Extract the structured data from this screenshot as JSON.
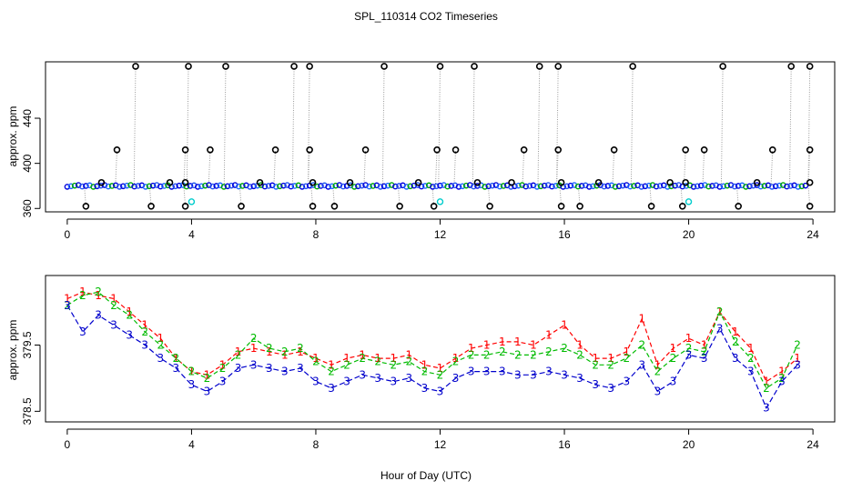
{
  "chart_data": [
    {
      "type": "scatter",
      "title": "SPL_110314  CO2 Timeseries",
      "xlabel": "",
      "ylabel": "approx. ppm",
      "xlim": [
        -0.7,
        24.7
      ],
      "ylim": [
        357,
        490
      ],
      "x_ticks": [
        "0",
        "4",
        "8",
        "12",
        "16",
        "20",
        "24"
      ],
      "y_ticks": [
        "360",
        "400",
        "440"
      ],
      "baseline": 380,
      "spike_top": 486,
      "spike_times": [
        2.2,
        3.9,
        5.1,
        7.3,
        7.8,
        10.2,
        12.0,
        13.1,
        15.2,
        15.8,
        18.2,
        21.1,
        23.3,
        23.9
      ],
      "mid_times": [
        1.6,
        3.8,
        4.6,
        6.7,
        7.8,
        9.6,
        11.9,
        12.5,
        14.7,
        15.8,
        17.6,
        19.9,
        20.5,
        22.7,
        23.9
      ],
      "mid_value": 412,
      "dip_times": [
        0.6,
        2.7,
        3.8,
        5.6,
        7.9,
        8.6,
        10.7,
        11.8,
        13.6,
        15.9,
        16.5,
        18.8,
        19.8,
        21.6,
        23.9
      ],
      "dip_value": 362,
      "bump_times": [
        1.1,
        3.3,
        3.8,
        6.2,
        7.9,
        9.1,
        11.3,
        13.2,
        14.3,
        15.9,
        17.1,
        19.4,
        19.9,
        22.2,
        23.9
      ],
      "bump_value": 383,
      "cyan_times": [
        4.0,
        12.0,
        20.0
      ],
      "cyan_value": 366
    },
    {
      "type": "line",
      "title": "",
      "xlabel": "Hour of Day (UTC)",
      "ylabel": "approx. ppm",
      "xlim": [
        -0.7,
        24.7
      ],
      "ylim": [
        378.34,
        380.55
      ],
      "x_ticks": [
        "0",
        "4",
        "8",
        "12",
        "16",
        "20",
        "24"
      ],
      "y_ticks": [
        "378.5",
        "379.5"
      ],
      "series": [
        {
          "name": "1",
          "label": "1",
          "color": "#ff0000",
          "x": [
            0,
            0.5,
            1,
            1.5,
            2,
            2.5,
            3,
            3.5,
            4,
            4.5,
            5,
            5.5,
            6,
            6.5,
            7,
            7.5,
            8,
            8.5,
            9,
            9.5,
            10,
            10.5,
            11,
            11.5,
            12,
            12.5,
            13,
            13.5,
            14,
            14.5,
            15,
            15.5,
            16,
            16.5,
            17,
            17.5,
            18,
            18.5,
            19,
            19.5,
            20,
            20.5,
            21,
            21.5,
            22,
            22.5,
            23,
            23.5
          ],
          "values": [
            380.2,
            380.3,
            380.25,
            380.2,
            380.0,
            379.8,
            379.6,
            379.3,
            379.1,
            379.05,
            379.2,
            379.4,
            379.45,
            379.4,
            379.35,
            379.4,
            379.3,
            379.2,
            379.3,
            379.35,
            379.3,
            379.3,
            379.35,
            379.2,
            379.15,
            379.3,
            379.45,
            379.5,
            379.55,
            379.55,
            379.5,
            379.65,
            379.8,
            379.5,
            379.3,
            379.3,
            379.4,
            379.9,
            379.2,
            379.45,
            379.6,
            379.5,
            380.0,
            379.7,
            379.45,
            378.95,
            379.1,
            379.3
          ]
        },
        {
          "name": "2",
          "label": "2",
          "color": "#00bb00",
          "x": [
            0,
            0.5,
            1,
            1.5,
            2,
            2.5,
            3,
            3.5,
            4,
            4.5,
            5,
            5.5,
            6,
            6.5,
            7,
            7.5,
            8,
            8.5,
            9,
            9.5,
            10,
            10.5,
            11,
            11.5,
            12,
            12.5,
            13,
            13.5,
            14,
            14.5,
            15,
            15.5,
            16,
            16.5,
            17,
            17.5,
            18,
            18.5,
            19,
            19.5,
            20,
            20.5,
            21,
            21.5,
            22,
            22.5,
            23,
            23.5
          ],
          "values": [
            380.1,
            380.25,
            380.3,
            380.1,
            379.95,
            379.7,
            379.5,
            379.3,
            379.1,
            379.0,
            379.15,
            379.35,
            379.6,
            379.45,
            379.4,
            379.45,
            379.25,
            379.1,
            379.2,
            379.3,
            379.25,
            379.2,
            379.25,
            379.1,
            379.05,
            379.25,
            379.35,
            379.35,
            379.4,
            379.35,
            379.35,
            379.4,
            379.45,
            379.35,
            379.2,
            379.2,
            379.3,
            379.5,
            379.1,
            379.3,
            379.45,
            379.4,
            380.0,
            379.55,
            379.3,
            378.85,
            379.0,
            379.5
          ]
        },
        {
          "name": "3",
          "label": "3",
          "color": "#0000cc",
          "x": [
            0,
            0.5,
            1,
            1.5,
            2,
            2.5,
            3,
            3.5,
            4,
            4.5,
            5,
            5.5,
            6,
            6.5,
            7,
            7.5,
            8,
            8.5,
            9,
            9.5,
            10,
            10.5,
            11,
            11.5,
            12,
            12.5,
            13,
            13.5,
            14,
            14.5,
            15,
            15.5,
            16,
            16.5,
            17,
            17.5,
            18,
            18.5,
            19,
            19.5,
            20,
            20.5,
            21,
            21.5,
            22,
            22.5,
            23,
            23.5
          ],
          "values": [
            380.1,
            379.7,
            379.95,
            379.8,
            379.65,
            379.5,
            379.3,
            379.15,
            378.9,
            378.8,
            378.95,
            379.15,
            379.2,
            379.15,
            379.1,
            379.15,
            378.95,
            378.85,
            378.95,
            379.05,
            379.0,
            378.95,
            379.0,
            378.85,
            378.8,
            379.0,
            379.1,
            379.1,
            379.1,
            379.05,
            379.05,
            379.1,
            379.05,
            379.0,
            378.9,
            378.85,
            378.95,
            379.2,
            378.8,
            378.95,
            379.35,
            379.3,
            379.75,
            379.3,
            379.1,
            378.55,
            378.95,
            379.2
          ]
        }
      ]
    }
  ]
}
